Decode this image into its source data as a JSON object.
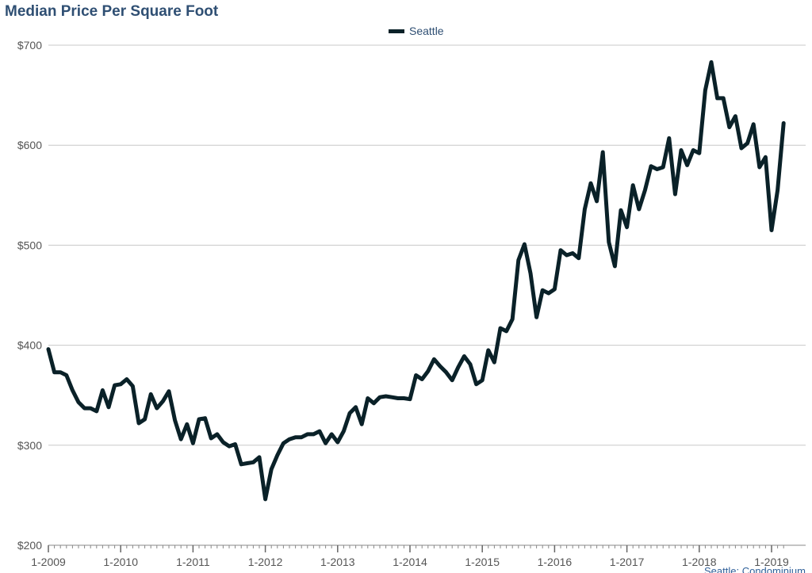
{
  "chart_data": {
    "type": "line",
    "title": "Median Price Per Square Foot",
    "xlabel": "",
    "ylabel": "",
    "ylim": [
      200,
      700
    ],
    "y_ticks": [
      "$200",
      "$300",
      "$400",
      "$500",
      "$600",
      "$700"
    ],
    "x_ticks": [
      "1-2009",
      "1-2010",
      "1-2011",
      "1-2012",
      "1-2013",
      "1-2014",
      "1-2015",
      "1-2016",
      "1-2017",
      "1-2018",
      "1-2019"
    ],
    "x_start": "1-2009",
    "x_step": "month",
    "grid": true,
    "legend_position": "top-center",
    "series_color": "#0a2128",
    "footer_note": "Seattle: Condominium",
    "series": [
      {
        "name": "Seattle",
        "values": [
          396,
          373,
          373,
          370,
          355,
          343,
          337,
          337,
          334,
          355,
          338,
          360,
          361,
          366,
          359,
          322,
          326,
          351,
          337,
          344,
          354,
          325,
          306,
          321,
          302,
          326,
          327,
          307,
          311,
          303,
          299,
          301,
          281,
          282,
          283,
          288,
          246,
          276,
          290,
          302,
          306,
          308,
          308,
          311,
          311,
          314,
          302,
          311,
          303,
          314,
          332,
          338,
          321,
          347,
          342,
          348,
          349,
          348,
          347,
          347,
          346,
          370,
          366,
          374,
          386,
          379,
          373,
          365,
          378,
          389,
          381,
          361,
          365,
          395,
          383,
          417,
          414,
          426,
          485,
          501,
          472,
          428,
          455,
          452,
          456,
          495,
          490,
          492,
          487,
          536,
          562,
          544,
          593,
          503,
          479,
          535,
          518,
          560,
          536,
          555,
          579,
          576,
          578,
          607,
          551,
          595,
          580,
          595,
          592,
          655,
          683,
          647,
          647,
          618,
          629,
          597,
          602,
          621,
          578,
          588,
          515,
          555,
          622
        ]
      }
    ]
  }
}
